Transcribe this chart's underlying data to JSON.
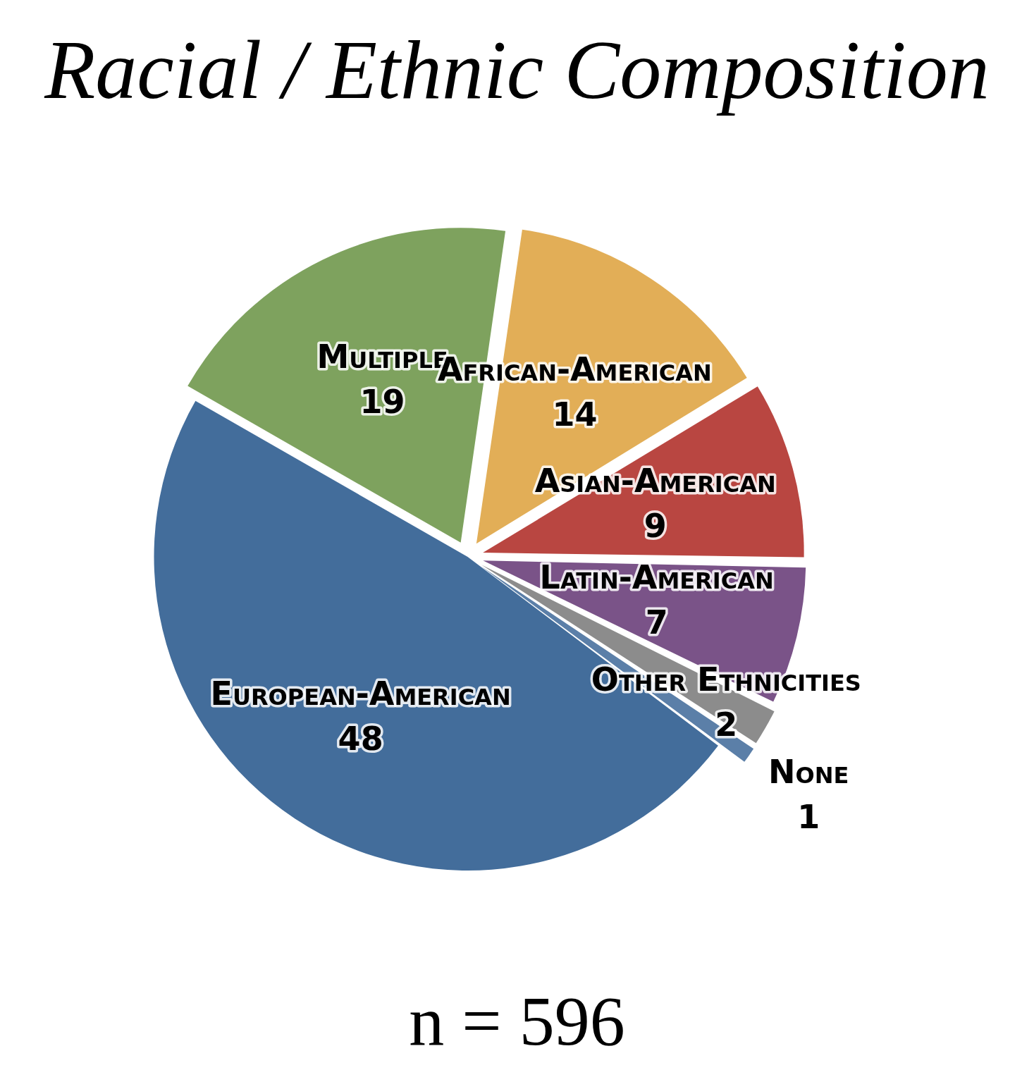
{
  "chart_data": {
    "type": "pie",
    "title": "Racial / Ethnic Composition",
    "categories": [
      "European-American",
      "Multiple",
      "African-American",
      "Asian-American",
      "Latin-American",
      "Other Ethnicities",
      "None"
    ],
    "values": [
      48,
      19,
      14,
      9,
      7,
      2,
      1
    ],
    "colors": [
      "#436d9b",
      "#7ea25e",
      "#e2ae57",
      "#b94641",
      "#7a5388",
      "#8c8c8c",
      "#5b7fa8"
    ],
    "data_labels": true,
    "legend": false,
    "annotations": [
      "n = 596"
    ]
  }
}
